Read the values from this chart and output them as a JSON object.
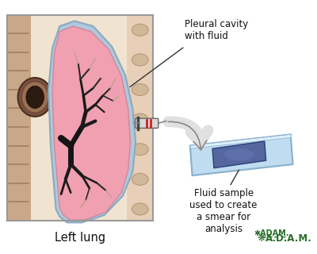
{
  "bg_color": "#ffffff",
  "title_text": "Left lung",
  "label1": "Pleural cavity\nwith fluid",
  "label2": "Fluid sample\nused to create\na smear for\nanalysis",
  "lung_fill": "#f0a0b0",
  "pleural_color": "#b0c8dc",
  "pleural_edge": "#8aaac0",
  "bronchi_color": "#1a1a1a",
  "chest_color": "#c8a888",
  "chest_bg": "#e8d0b8",
  "slide_face": "#c0dcf0",
  "slide_top": "#dff0ff",
  "slide_edge": "#88b0cc",
  "smear_color": "#3a4a8a",
  "arrow_fill": "#e0e0e0",
  "arrow_edge": "#888888",
  "text_color": "#111111",
  "adam_color": "#2a6e2a",
  "syringe_body": "#d0d0d0",
  "syringe_red": "#cc2222"
}
